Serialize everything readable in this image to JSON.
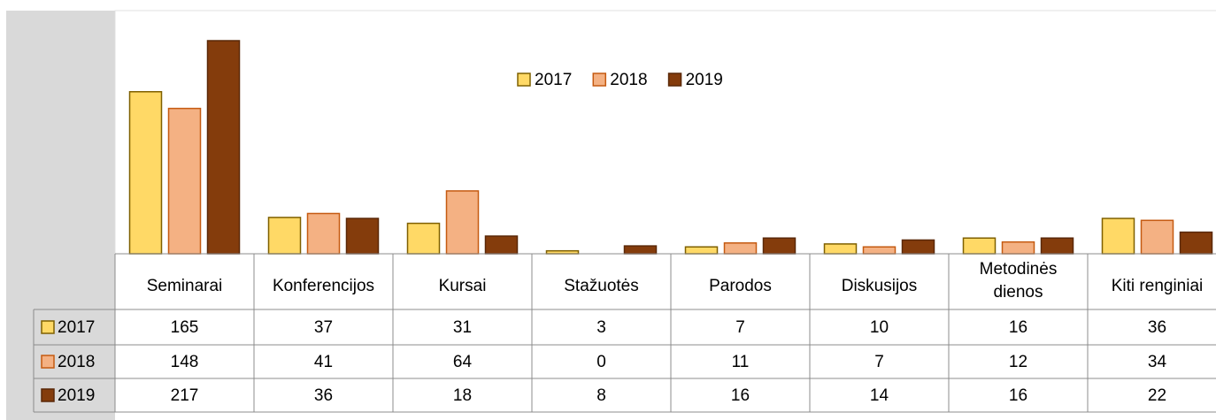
{
  "chart_data": {
    "type": "bar",
    "categories": [
      "Seminarai",
      "Konferencijos",
      "Kursai",
      "Stažuotės",
      "Parodos",
      "Diskusijos",
      [
        "Metodinės",
        "dienos"
      ],
      "Kiti renginiai"
    ],
    "series": [
      {
        "name": "2017",
        "color": "#FFD966",
        "stroke": "#7F6000",
        "values": [
          165,
          37,
          31,
          3,
          7,
          10,
          16,
          36
        ]
      },
      {
        "name": "2018",
        "color": "#F4B183",
        "stroke": "#C55A11",
        "values": [
          148,
          41,
          64,
          0,
          11,
          7,
          12,
          34
        ]
      },
      {
        "name": "2019",
        "color": "#843C0C",
        "stroke": "#5A2808",
        "values": [
          217,
          36,
          18,
          8,
          16,
          14,
          16,
          22
        ]
      }
    ],
    "legend": "top"
  }
}
